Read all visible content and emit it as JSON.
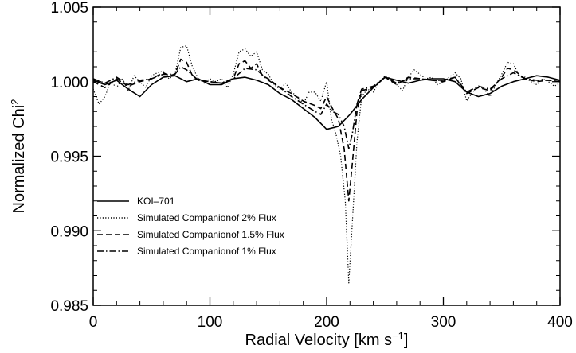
{
  "chart_data": {
    "type": "line",
    "xlabel": "Radial Velocity [km s",
    "xlabel_sup": "−1",
    "xlabel_suffix": "]",
    "ylabel": "Normalized Chi",
    "ylabel_sup": "2",
    "xlim": [
      0,
      400
    ],
    "ylim": [
      0.985,
      1.005
    ],
    "xticks": [
      0,
      100,
      200,
      300,
      400
    ],
    "xtick_labels": [
      "0",
      "100",
      "200",
      "300",
      "400"
    ],
    "yticks": [
      0.985,
      0.99,
      0.995,
      1.0,
      1.005
    ],
    "ytick_labels": [
      "0.985",
      "0.990",
      "0.995",
      "1.000",
      "1.005"
    ],
    "grid": false,
    "legend_position": "bottom-left",
    "series": [
      {
        "name": "KOI–701",
        "dash": "solid",
        "points": [
          [
            0,
            1.0001
          ],
          [
            10,
            0.9998
          ],
          [
            20,
            1.0001
          ],
          [
            30,
            0.9995
          ],
          [
            40,
            0.999
          ],
          [
            50,
            0.9998
          ],
          [
            60,
            1.0003
          ],
          [
            70,
            1.0004
          ],
          [
            80,
            1.0
          ],
          [
            90,
            1.0002
          ],
          [
            100,
            0.9998
          ],
          [
            110,
            0.9998
          ],
          [
            120,
            1.0002
          ],
          [
            130,
            1.0003
          ],
          [
            140,
            1.0001
          ],
          [
            150,
            0.9998
          ],
          [
            160,
            0.9992
          ],
          [
            170,
            0.9988
          ],
          [
            180,
            0.9982
          ],
          [
            190,
            0.9976
          ],
          [
            200,
            0.9968
          ],
          [
            210,
            0.997
          ],
          [
            220,
            0.9978
          ],
          [
            230,
            0.9988
          ],
          [
            240,
            0.9996
          ],
          [
            250,
            1.0003
          ],
          [
            260,
            1.0001
          ],
          [
            270,
            0.9999
          ],
          [
            280,
            1.0001
          ],
          [
            290,
            1.0002
          ],
          [
            300,
            1.0002
          ],
          [
            310,
            1.0
          ],
          [
            320,
            0.9993
          ],
          [
            330,
            0.999
          ],
          [
            340,
            0.9992
          ],
          [
            350,
            0.9997
          ],
          [
            360,
            1.0
          ],
          [
            370,
            1.0002
          ],
          [
            380,
            1.0004
          ],
          [
            390,
            1.0003
          ],
          [
            400,
            1.0001
          ]
        ]
      },
      {
        "name": "Simulated Companionof 2% Flux",
        "dash": "dotted",
        "points": [
          [
            0,
            0.9995
          ],
          [
            5,
            0.9985
          ],
          [
            10,
            0.999
          ],
          [
            15,
            1.0
          ],
          [
            20,
            0.9996
          ],
          [
            25,
            1.0002
          ],
          [
            30,
            0.9994
          ],
          [
            35,
            1.0004
          ],
          [
            40,
            1.0
          ],
          [
            45,
            0.9996
          ],
          [
            50,
            1.0004
          ],
          [
            55,
            1.0006
          ],
          [
            60,
            1.0007
          ],
          [
            65,
            1.0002
          ],
          [
            70,
            1.0005
          ],
          [
            75,
            1.0023
          ],
          [
            80,
            1.0024
          ],
          [
            85,
            1.001
          ],
          [
            90,
            1.0002
          ],
          [
            95,
            0.9999
          ],
          [
            100,
            1.0002
          ],
          [
            105,
            1.0
          ],
          [
            110,
            1.0002
          ],
          [
            115,
            0.9996
          ],
          [
            120,
            1.0005
          ],
          [
            125,
            1.002
          ],
          [
            130,
            1.0022
          ],
          [
            135,
            1.0017
          ],
          [
            140,
            1.002
          ],
          [
            145,
            1.0008
          ],
          [
            150,
            1.0005
          ],
          [
            155,
            0.9998
          ],
          [
            160,
            0.9995
          ],
          [
            165,
            0.9999
          ],
          [
            170,
            0.9993
          ],
          [
            175,
            0.999
          ],
          [
            180,
            0.9985
          ],
          [
            185,
            0.9993
          ],
          [
            190,
            0.9993
          ],
          [
            195,
            0.9987
          ],
          [
            200,
            1.0
          ],
          [
            204,
            0.9975
          ],
          [
            208,
            0.9965
          ],
          [
            212,
            0.995
          ],
          [
            216,
            0.992
          ],
          [
            219,
            0.9865
          ],
          [
            222,
            0.9905
          ],
          [
            226,
            0.996
          ],
          [
            230,
            0.999
          ],
          [
            235,
            0.9995
          ],
          [
            240,
            0.9993
          ],
          [
            245,
            1.0
          ],
          [
            250,
            1.0004
          ],
          [
            255,
            1.0002
          ],
          [
            260,
            0.9998
          ],
          [
            265,
            0.9994
          ],
          [
            270,
            1.0003
          ],
          [
            275,
            1.0008
          ],
          [
            280,
            1.0005
          ],
          [
            285,
            1.0002
          ],
          [
            290,
            1.0003
          ],
          [
            295,
            0.9998
          ],
          [
            300,
            1.0
          ],
          [
            305,
            1.0003
          ],
          [
            310,
            1.0006
          ],
          [
            315,
            1.0002
          ],
          [
            320,
            0.9987
          ],
          [
            325,
            0.9993
          ],
          [
            330,
            0.9997
          ],
          [
            335,
            0.9995
          ],
          [
            340,
            0.999
          ],
          [
            345,
            0.9998
          ],
          [
            350,
            1.0005
          ],
          [
            355,
            1.0013
          ],
          [
            360,
            1.0012
          ],
          [
            365,
            1.0004
          ],
          [
            370,
            1.0003
          ],
          [
            375,
            1.0
          ],
          [
            380,
            0.9998
          ],
          [
            385,
            1.0002
          ],
          [
            390,
            1.0
          ],
          [
            395,
            0.9997
          ],
          [
            400,
            0.9999
          ]
        ]
      },
      {
        "name": "Simulated Companionof 1.5% Flux",
        "dash": "dashed",
        "points": [
          [
            0,
            1.0
          ],
          [
            10,
            0.9996
          ],
          [
            20,
            1.0002
          ],
          [
            30,
            0.9997
          ],
          [
            40,
            1.0
          ],
          [
            50,
            1.0002
          ],
          [
            60,
            1.0006
          ],
          [
            65,
            1.0004
          ],
          [
            70,
            1.0005
          ],
          [
            75,
            1.0015
          ],
          [
            80,
            1.0013
          ],
          [
            85,
            1.0004
          ],
          [
            90,
            1.0001
          ],
          [
            100,
            1.0
          ],
          [
            110,
            0.9999
          ],
          [
            120,
            1.0002
          ],
          [
            125,
            1.0012
          ],
          [
            130,
            1.0014
          ],
          [
            135,
            1.0009
          ],
          [
            140,
            1.0012
          ],
          [
            145,
            1.0004
          ],
          [
            150,
            1.0002
          ],
          [
            160,
            0.9996
          ],
          [
            170,
            0.9992
          ],
          [
            180,
            0.9987
          ],
          [
            190,
            0.9984
          ],
          [
            195,
            0.9982
          ],
          [
            200,
            0.999
          ],
          [
            205,
            0.9982
          ],
          [
            210,
            0.9975
          ],
          [
            215,
            0.9955
          ],
          [
            219,
            0.992
          ],
          [
            222,
            0.9945
          ],
          [
            226,
            0.998
          ],
          [
            230,
            0.9994
          ],
          [
            240,
            0.9996
          ],
          [
            250,
            1.0003
          ],
          [
            260,
            0.9998
          ],
          [
            270,
            1.0003
          ],
          [
            280,
            1.0002
          ],
          [
            290,
            1.0001
          ],
          [
            300,
            1.0
          ],
          [
            310,
            1.0003
          ],
          [
            320,
            0.9992
          ],
          [
            330,
            0.9996
          ],
          [
            340,
            0.9994
          ],
          [
            350,
            1.0003
          ],
          [
            355,
            1.0009
          ],
          [
            360,
            1.0008
          ],
          [
            370,
            1.0002
          ],
          [
            380,
            1.0
          ],
          [
            390,
            1.0001
          ],
          [
            400,
            1.0
          ]
        ]
      },
      {
        "name": "Simulated Companionof 1% Flux",
        "dash": "dashdot",
        "points": [
          [
            0,
            1.0002
          ],
          [
            10,
            0.9999
          ],
          [
            20,
            1.0003
          ],
          [
            30,
            0.9998
          ],
          [
            40,
            1.0001
          ],
          [
            50,
            1.0002
          ],
          [
            60,
            1.0005
          ],
          [
            70,
            1.0005
          ],
          [
            75,
            1.001
          ],
          [
            80,
            1.0008
          ],
          [
            90,
            1.0001
          ],
          [
            100,
            1.0
          ],
          [
            110,
            0.9999
          ],
          [
            120,
            1.0002
          ],
          [
            130,
            1.0009
          ],
          [
            140,
            1.0008
          ],
          [
            150,
            1.0001
          ],
          [
            160,
            0.9996
          ],
          [
            170,
            0.999
          ],
          [
            180,
            0.9985
          ],
          [
            190,
            0.998
          ],
          [
            195,
            0.9978
          ],
          [
            200,
            0.9985
          ],
          [
            205,
            0.998
          ],
          [
            210,
            0.9978
          ],
          [
            215,
            0.997
          ],
          [
            219,
            0.9955
          ],
          [
            222,
            0.9965
          ],
          [
            226,
            0.9985
          ],
          [
            230,
            0.9995
          ],
          [
            240,
            0.9997
          ],
          [
            250,
            1.0003
          ],
          [
            260,
            0.9999
          ],
          [
            270,
            1.0002
          ],
          [
            280,
            1.0002
          ],
          [
            290,
            1.0001
          ],
          [
            300,
            1.0001
          ],
          [
            310,
            1.0003
          ],
          [
            320,
            0.9993
          ],
          [
            330,
            0.9997
          ],
          [
            340,
            0.9995
          ],
          [
            350,
            1.0002
          ],
          [
            360,
            1.0006
          ],
          [
            370,
            1.0002
          ],
          [
            380,
            1.0001
          ],
          [
            390,
            1.0001
          ],
          [
            400,
            1.0001
          ]
        ]
      }
    ]
  }
}
